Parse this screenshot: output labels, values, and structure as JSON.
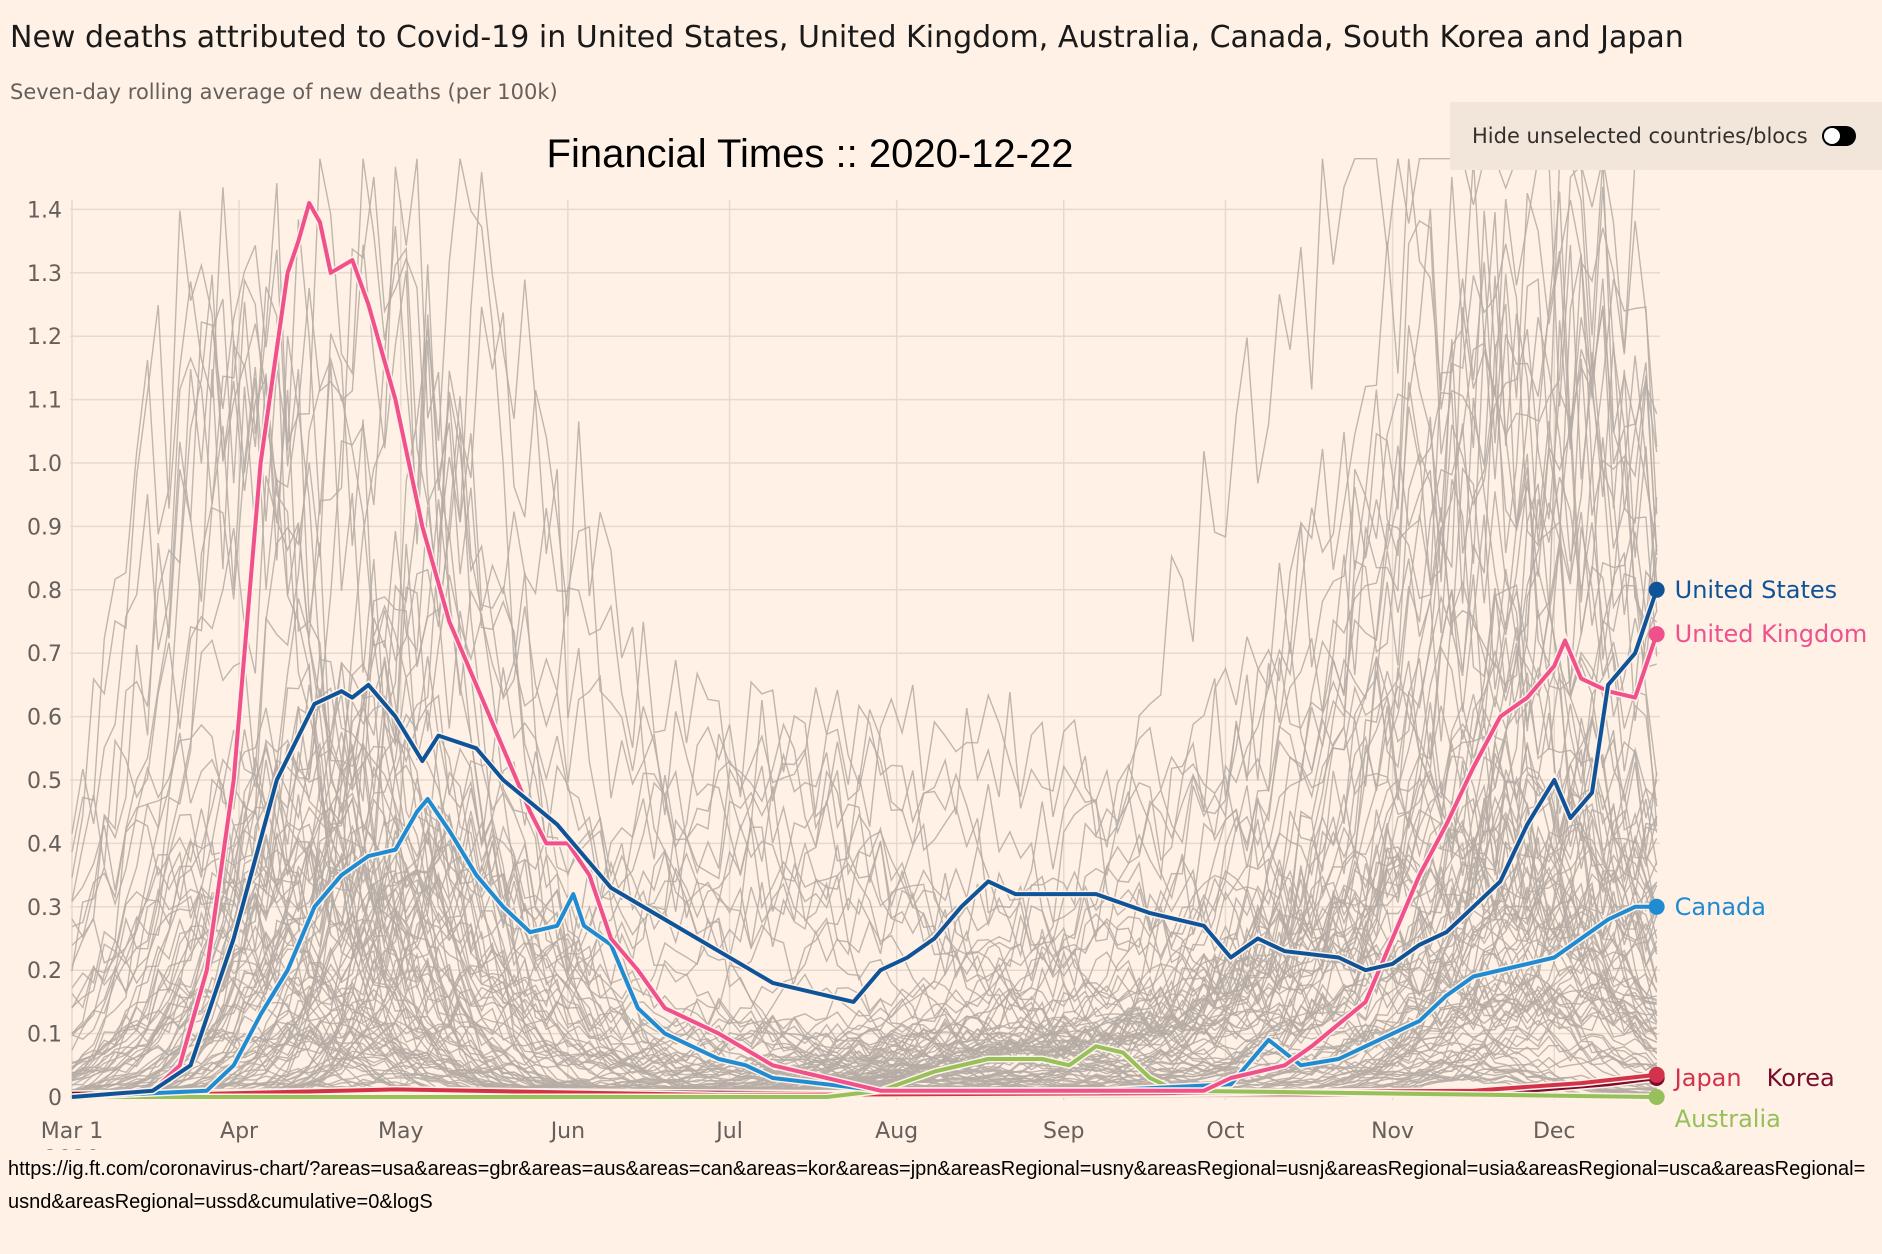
{
  "header": {
    "title": "New deaths attributed to Covid-19 in United States, United Kingdom, Australia, Canada, South Korea and Japan",
    "subtitle": "Seven-day rolling average of new deaths (per 100k)",
    "watermark": "Financial Times :: 2020-12-22"
  },
  "toggle": {
    "label": "Hide unselected countries/blocs",
    "on": false
  },
  "url": "https://ig.ft.com/coronavirus-chart/?areas=usa&areas=gbr&areas=aus&areas=can&areas=kor&areas=jpn&areasRegional=usny&areasRegional=usnj&areasRegional=usia&areasRegional=usca&areasRegional=usnd&areasRegional=ussd&cumulative=0&logS",
  "chart_data": {
    "type": "line",
    "title": "New deaths attributed to Covid-19",
    "ylabel": "Seven-day rolling average of new deaths (per 100k)",
    "ylim": [
      0,
      1.4
    ],
    "xlim_days_since_mar1": [
      0,
      296
    ],
    "y_ticks": [
      "0",
      "0.1",
      "0.2",
      "0.3",
      "0.4",
      "0.5",
      "0.6",
      "0.7",
      "0.8",
      "0.9",
      "1.0",
      "1.1",
      "1.2",
      "1.3",
      "1.4"
    ],
    "x_ticks": [
      {
        "label": "Mar 1",
        "sub": "2020",
        "day": 0
      },
      {
        "label": "Apr",
        "day": 31
      },
      {
        "label": "May",
        "day": 61
      },
      {
        "label": "Jun",
        "day": 92
      },
      {
        "label": "Jul",
        "day": 122
      },
      {
        "label": "Aug",
        "day": 153
      },
      {
        "label": "Sep",
        "day": 184
      },
      {
        "label": "Oct",
        "day": 214
      },
      {
        "label": "Nov",
        "day": 245
      },
      {
        "label": "Dec",
        "day": 275
      }
    ],
    "background_series_count": 110,
    "series": [
      {
        "name": "Korea",
        "color": "#7a0c2e",
        "points": [
          [
            0,
            0.005
          ],
          [
            60,
            0.01
          ],
          [
            150,
            0.005
          ],
          [
            250,
            0.004
          ],
          [
            270,
            0.01
          ],
          [
            285,
            0.02
          ],
          [
            294,
            0.03
          ]
        ]
      },
      {
        "name": "Japan",
        "color": "#d3334a",
        "points": [
          [
            0,
            0.0
          ],
          [
            60,
            0.012
          ],
          [
            120,
            0.003
          ],
          [
            200,
            0.006
          ],
          [
            260,
            0.01
          ],
          [
            280,
            0.022
          ],
          [
            294,
            0.035
          ]
        ]
      },
      {
        "name": "Australia",
        "color": "#96c05a",
        "points": [
          [
            0,
            0
          ],
          [
            140,
            0.0
          ],
          [
            150,
            0.01
          ],
          [
            160,
            0.04
          ],
          [
            170,
            0.06
          ],
          [
            180,
            0.06
          ],
          [
            185,
            0.05
          ],
          [
            190,
            0.08
          ],
          [
            195,
            0.07
          ],
          [
            200,
            0.03
          ],
          [
            205,
            0.01
          ],
          [
            294,
            0.0
          ]
        ]
      },
      {
        "name": "Canada",
        "color": "#1e8bd2",
        "points": [
          [
            0,
            0
          ],
          [
            25,
            0.01
          ],
          [
            30,
            0.05
          ],
          [
            35,
            0.13
          ],
          [
            40,
            0.2
          ],
          [
            45,
            0.3
          ],
          [
            50,
            0.35
          ],
          [
            55,
            0.38
          ],
          [
            60,
            0.39
          ],
          [
            64,
            0.45
          ],
          [
            66,
            0.47
          ],
          [
            70,
            0.42
          ],
          [
            75,
            0.35
          ],
          [
            80,
            0.3
          ],
          [
            85,
            0.26
          ],
          [
            90,
            0.27
          ],
          [
            93,
            0.32
          ],
          [
            95,
            0.27
          ],
          [
            100,
            0.24
          ],
          [
            105,
            0.14
          ],
          [
            110,
            0.1
          ],
          [
            115,
            0.08
          ],
          [
            120,
            0.06
          ],
          [
            125,
            0.05
          ],
          [
            130,
            0.03
          ],
          [
            140,
            0.02
          ],
          [
            150,
            0.01
          ],
          [
            190,
            0.01
          ],
          [
            215,
            0.02
          ],
          [
            220,
            0.07
          ],
          [
            222,
            0.09
          ],
          [
            228,
            0.05
          ],
          [
            235,
            0.06
          ],
          [
            240,
            0.08
          ],
          [
            250,
            0.12
          ],
          [
            255,
            0.16
          ],
          [
            260,
            0.19
          ],
          [
            270,
            0.21
          ],
          [
            275,
            0.22
          ],
          [
            280,
            0.25
          ],
          [
            285,
            0.28
          ],
          [
            290,
            0.3
          ],
          [
            294,
            0.3
          ]
        ]
      },
      {
        "name": "United Kingdom",
        "color": "#f0508c",
        "points": [
          [
            0,
            0
          ],
          [
            15,
            0.01
          ],
          [
            20,
            0.05
          ],
          [
            25,
            0.2
          ],
          [
            30,
            0.5
          ],
          [
            35,
            1.0
          ],
          [
            40,
            1.3
          ],
          [
            42,
            1.35
          ],
          [
            44,
            1.41
          ],
          [
            46,
            1.38
          ],
          [
            48,
            1.3
          ],
          [
            52,
            1.32
          ],
          [
            55,
            1.25
          ],
          [
            60,
            1.1
          ],
          [
            65,
            0.9
          ],
          [
            70,
            0.75
          ],
          [
            75,
            0.65
          ],
          [
            80,
            0.55
          ],
          [
            85,
            0.45
          ],
          [
            88,
            0.4
          ],
          [
            92,
            0.4
          ],
          [
            96,
            0.35
          ],
          [
            100,
            0.25
          ],
          [
            105,
            0.2
          ],
          [
            110,
            0.14
          ],
          [
            120,
            0.1
          ],
          [
            130,
            0.05
          ],
          [
            140,
            0.03
          ],
          [
            150,
            0.01
          ],
          [
            200,
            0.01
          ],
          [
            210,
            0.01
          ],
          [
            215,
            0.03
          ],
          [
            225,
            0.05
          ],
          [
            230,
            0.08
          ],
          [
            240,
            0.15
          ],
          [
            245,
            0.25
          ],
          [
            250,
            0.35
          ],
          [
            255,
            0.43
          ],
          [
            260,
            0.52
          ],
          [
            265,
            0.6
          ],
          [
            270,
            0.63
          ],
          [
            275,
            0.68
          ],
          [
            277,
            0.72
          ],
          [
            280,
            0.66
          ],
          [
            285,
            0.64
          ],
          [
            290,
            0.63
          ],
          [
            294,
            0.73
          ]
        ]
      },
      {
        "name": "United States",
        "color": "#0f5499",
        "points": [
          [
            0,
            0
          ],
          [
            15,
            0.01
          ],
          [
            22,
            0.05
          ],
          [
            30,
            0.25
          ],
          [
            38,
            0.5
          ],
          [
            45,
            0.62
          ],
          [
            50,
            0.64
          ],
          [
            52,
            0.63
          ],
          [
            55,
            0.65
          ],
          [
            60,
            0.6
          ],
          [
            65,
            0.53
          ],
          [
            68,
            0.57
          ],
          [
            75,
            0.55
          ],
          [
            80,
            0.5
          ],
          [
            90,
            0.43
          ],
          [
            100,
            0.33
          ],
          [
            110,
            0.28
          ],
          [
            120,
            0.23
          ],
          [
            130,
            0.18
          ],
          [
            140,
            0.16
          ],
          [
            145,
            0.15
          ],
          [
            150,
            0.2
          ],
          [
            155,
            0.22
          ],
          [
            160,
            0.25
          ],
          [
            165,
            0.3
          ],
          [
            170,
            0.34
          ],
          [
            175,
            0.32
          ],
          [
            180,
            0.32
          ],
          [
            190,
            0.32
          ],
          [
            200,
            0.29
          ],
          [
            210,
            0.27
          ],
          [
            215,
            0.22
          ],
          [
            220,
            0.25
          ],
          [
            225,
            0.23
          ],
          [
            235,
            0.22
          ],
          [
            240,
            0.2
          ],
          [
            245,
            0.21
          ],
          [
            250,
            0.24
          ],
          [
            255,
            0.26
          ],
          [
            260,
            0.3
          ],
          [
            265,
            0.34
          ],
          [
            270,
            0.43
          ],
          [
            275,
            0.5
          ],
          [
            278,
            0.44
          ],
          [
            282,
            0.48
          ],
          [
            285,
            0.65
          ],
          [
            290,
            0.7
          ],
          [
            294,
            0.8
          ]
        ]
      }
    ]
  }
}
